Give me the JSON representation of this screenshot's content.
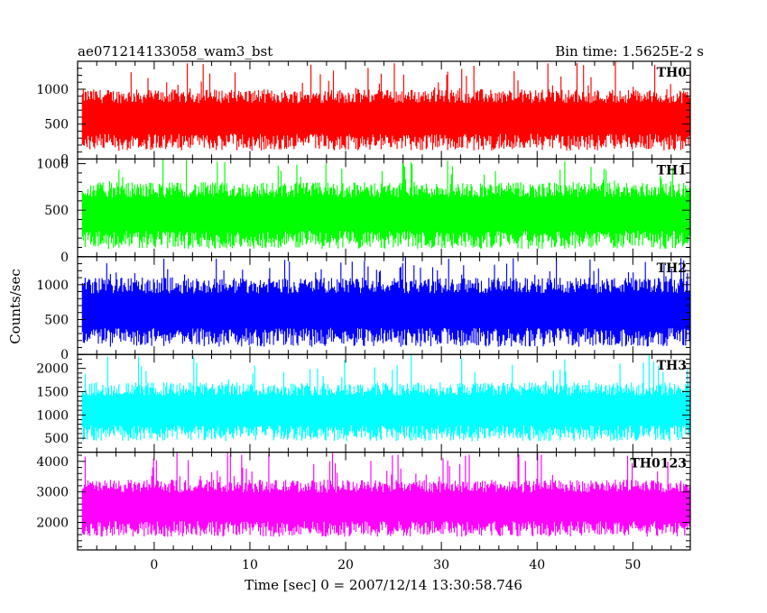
{
  "header": {
    "title": "ae071214133058_wam3_bst",
    "bin_time": "Bin time: 1.5625E-2 s"
  },
  "axes": {
    "xlabel": "Time [sec] 0 = 2007/12/14 13:30:58.746",
    "ylabel": "Counts/sec"
  },
  "colors": {
    "TH0": "#ff0000",
    "TH1": "#00ff00",
    "TH2": "#0000ff",
    "TH3": "#00ffff",
    "TH0123": "#ff00ff"
  },
  "chart_data": {
    "type": "line",
    "title": "ae071214133058_wam3_bst",
    "subtitle": "Bin time: 1.5625E-2 s",
    "xlabel": "Time [sec] 0 = 2007/12/14 13:30:58.746",
    "ylabel": "Counts/sec",
    "xlim": [
      -8,
      56
    ],
    "x_range_of_data": [
      -7.5,
      56
    ],
    "xticks": [
      "0",
      "10",
      "20",
      "30",
      "40",
      "50"
    ],
    "grid": false,
    "panels": [
      {
        "name": "TH0",
        "color": "#ff0000",
        "ylim": [
          0,
          1400
        ],
        "yticks": [
          "0",
          "500",
          "1000"
        ],
        "typical_low": 200,
        "typical_high": 1000,
        "peak": 1400
      },
      {
        "name": "TH1",
        "color": "#00ff00",
        "ylim": [
          0,
          1050
        ],
        "yticks": [
          "0",
          "500",
          "1000"
        ],
        "typical_low": 150,
        "typical_high": 800,
        "peak": 1050
      },
      {
        "name": "TH2",
        "color": "#0000ff",
        "ylim": [
          0,
          1400
        ],
        "yticks": [
          "0",
          "500",
          "1000"
        ],
        "typical_low": 200,
        "typical_high": 1100,
        "peak": 1400
      },
      {
        "name": "TH3",
        "color": "#00ffff",
        "ylim": [
          200,
          2300
        ],
        "yticks": [
          "500",
          "1000",
          "1500",
          "2000"
        ],
        "typical_low": 550,
        "typical_high": 1700,
        "peak": 2300
      },
      {
        "name": "TH0123",
        "color": "#ff00ff",
        "ylim": [
          1100,
          4300
        ],
        "yticks": [
          "2000",
          "3000",
          "4000"
        ],
        "typical_low": 1700,
        "typical_high": 3400,
        "peak": 4300
      }
    ]
  }
}
